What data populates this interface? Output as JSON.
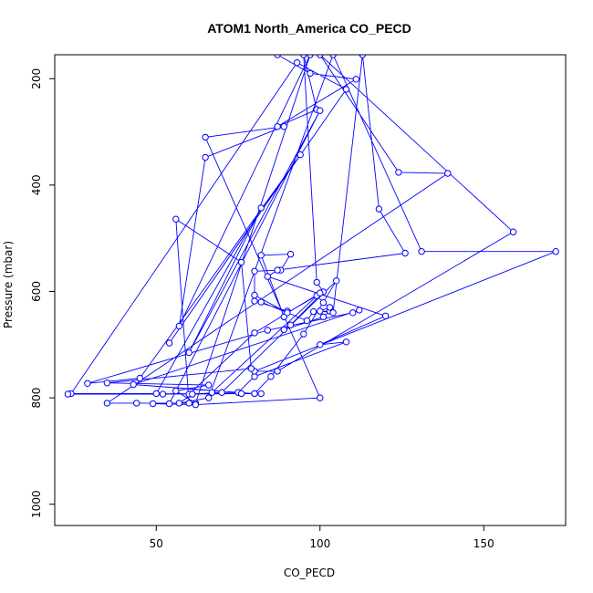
{
  "chart_data": {
    "type": "line",
    "title": "ATOM1 North_America CO_PECD",
    "xlabel": "CO_PECD",
    "ylabel": "Pressure (mbar)",
    "xlim": [
      19,
      175
    ],
    "ylim": [
      1040,
      155
    ],
    "y_inverted": true,
    "x_ticks": [
      50,
      100,
      150
    ],
    "y_ticks": [
      200,
      400,
      600,
      800,
      1000
    ],
    "grid": false,
    "color": "#0000ff",
    "series": [
      {
        "points": [
          [
            87,
            155
          ],
          [
            97,
            190
          ],
          [
            111,
            201
          ],
          [
            87,
            290
          ],
          [
            99,
            258
          ],
          [
            95,
            155
          ],
          [
            99,
            583
          ],
          [
            101,
            601
          ],
          [
            91,
            663
          ],
          [
            89,
            672
          ],
          [
            101,
            648
          ],
          [
            103,
            637
          ],
          [
            98,
            638
          ],
          [
            96,
            655
          ],
          [
            82,
            620
          ],
          [
            80,
            618
          ],
          [
            90,
            637
          ],
          [
            89,
            648
          ],
          [
            82,
            532
          ],
          [
            91,
            530
          ],
          [
            88,
            560
          ],
          [
            80,
            562
          ],
          [
            80,
            607
          ],
          [
            90,
            640
          ],
          [
            99,
            608
          ],
          [
            101,
            621
          ],
          [
            103,
            630
          ],
          [
            100,
            637
          ],
          [
            104,
            640
          ],
          [
            113,
            155
          ],
          [
            118,
            445
          ],
          [
            126,
            528
          ],
          [
            87,
            560
          ],
          [
            84,
            572
          ],
          [
            120,
            646
          ],
          [
            100,
            700
          ],
          [
            108,
            695
          ],
          [
            80,
            760
          ],
          [
            75,
            790
          ],
          [
            80,
            792
          ],
          [
            85,
            760
          ],
          [
            95,
            680
          ],
          [
            105,
            580
          ],
          [
            70,
            790
          ],
          [
            61,
            793
          ],
          [
            57,
            810
          ],
          [
            66,
            800
          ],
          [
            104,
            155
          ],
          [
            131,
            525
          ],
          [
            172,
            525
          ],
          [
            80,
            750
          ],
          [
            87,
            750
          ],
          [
            159,
            488
          ],
          [
            100,
            155
          ],
          [
            124,
            376
          ],
          [
            139,
            378
          ],
          [
            35,
            810
          ],
          [
            44,
            810
          ],
          [
            60,
            810
          ],
          [
            56,
            464
          ],
          [
            76,
            545
          ],
          [
            79,
            745
          ],
          [
            35,
            772
          ],
          [
            66,
            776
          ],
          [
            56,
            787
          ],
          [
            62,
            810
          ],
          [
            97,
            155
          ],
          [
            57,
            665
          ],
          [
            65,
            348
          ],
          [
            89,
            290
          ],
          [
            65,
            310
          ],
          [
            100,
            800
          ],
          [
            62,
            813
          ],
          [
            49,
            811
          ],
          [
            54,
            811
          ],
          [
            100,
            260
          ],
          [
            60,
            715
          ],
          [
            82,
            443
          ],
          [
            50,
            792
          ],
          [
            24,
            792
          ],
          [
            93,
            170
          ],
          [
            108,
            220
          ],
          [
            54,
            697
          ],
          [
            94,
            343
          ],
          [
            45,
            763
          ],
          [
            29,
            773
          ],
          [
            84,
            673
          ],
          [
            110,
            640
          ],
          [
            112,
            635
          ],
          [
            43,
            775
          ],
          [
            75,
            790
          ],
          [
            80,
            792
          ],
          [
            67,
            790
          ],
          [
            100,
            603
          ],
          [
            80,
            678
          ],
          [
            60,
            793
          ],
          [
            61,
            793
          ],
          [
            76,
            792
          ],
          [
            52,
            793
          ],
          [
            23,
            793
          ],
          [
            82,
            792
          ]
        ]
      }
    ]
  }
}
